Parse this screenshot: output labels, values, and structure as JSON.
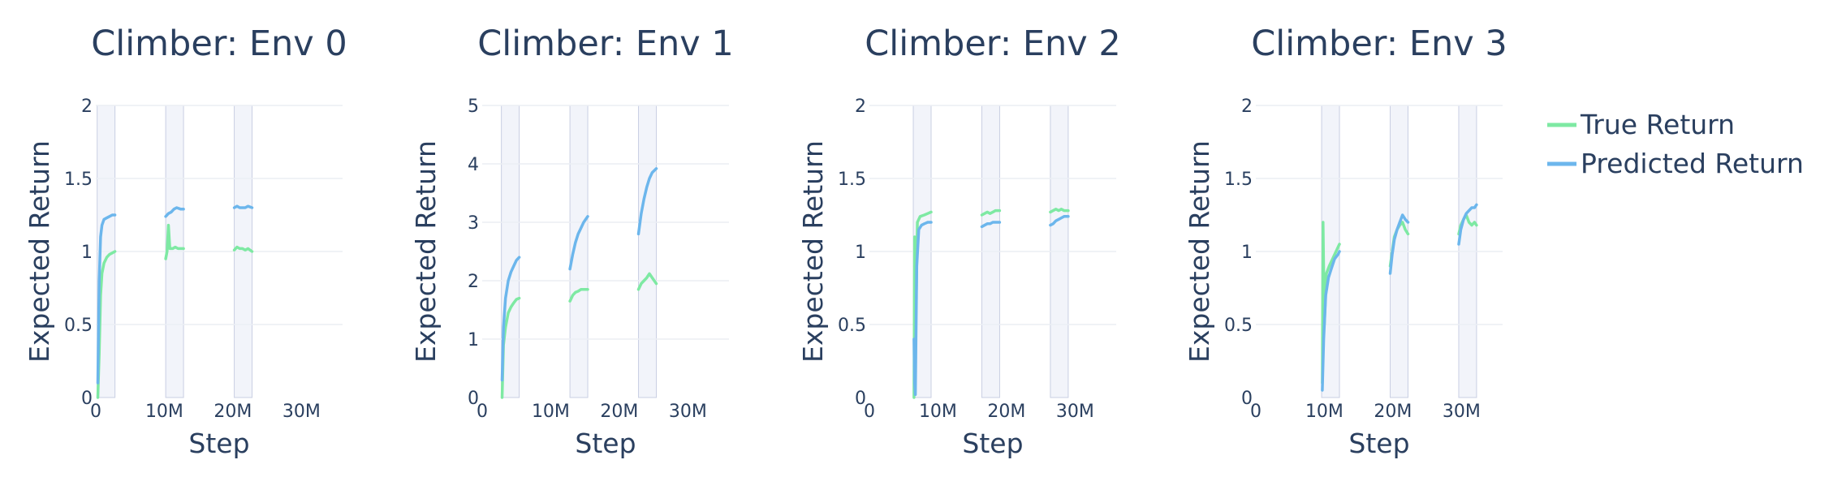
{
  "colors": {
    "true": "#7ee9a3",
    "pred": "#6cb6ec",
    "band": "#e8ebf6",
    "grid": "#ebeef4"
  },
  "legend": {
    "items": [
      {
        "label": "True Return",
        "color": "#7ee9a3"
      },
      {
        "label": "Predicted Return",
        "color": "#6cb6ec"
      }
    ],
    "placement": "top-right"
  },
  "chart_data": [
    {
      "type": "line",
      "title": "Climber: Env 0",
      "xlabel": "Step",
      "ylabel": "Expected Return",
      "xlim": [
        0,
        36
      ],
      "ylim": [
        0,
        2
      ],
      "xticks": [
        0,
        10,
        20,
        30
      ],
      "xtick_labels": [
        "0",
        "10M",
        "20M",
        "30M"
      ],
      "yticks": [
        0,
        0.5,
        1,
        1.5,
        2
      ],
      "ytick_labels": [
        "0",
        "0.5",
        "1",
        "1.5",
        "2"
      ],
      "bands": [
        [
          0.2,
          2.8
        ],
        [
          10.2,
          12.8
        ],
        [
          20.2,
          22.8
        ]
      ],
      "series": [
        {
          "name": "True Return",
          "segments": [
            [
              [
                0.3,
                0.0
              ],
              [
                0.5,
                0.3
              ],
              [
                0.7,
                0.7
              ],
              [
                0.9,
                0.85
              ],
              [
                1.2,
                0.92
              ],
              [
                1.6,
                0.96
              ],
              [
                2.0,
                0.98
              ],
              [
                2.4,
                0.99
              ],
              [
                2.8,
                1.0
              ]
            ],
            [
              [
                10.2,
                0.95
              ],
              [
                10.4,
                1.0
              ],
              [
                10.6,
                1.18
              ],
              [
                10.8,
                1.02
              ],
              [
                11.2,
                1.02
              ],
              [
                11.6,
                1.03
              ],
              [
                12.0,
                1.02
              ],
              [
                12.4,
                1.02
              ],
              [
                12.8,
                1.02
              ]
            ],
            [
              [
                20.2,
                1.01
              ],
              [
                20.6,
                1.03
              ],
              [
                21.0,
                1.02
              ],
              [
                21.4,
                1.02
              ],
              [
                21.8,
                1.01
              ],
              [
                22.2,
                1.02
              ],
              [
                22.8,
                1.0
              ]
            ]
          ]
        },
        {
          "name": "Predicted Return",
          "segments": [
            [
              [
                0.3,
                0.1
              ],
              [
                0.5,
                0.8
              ],
              [
                0.7,
                1.1
              ],
              [
                0.9,
                1.18
              ],
              [
                1.2,
                1.22
              ],
              [
                1.6,
                1.23
              ],
              [
                2.0,
                1.24
              ],
              [
                2.4,
                1.25
              ],
              [
                2.8,
                1.25
              ]
            ],
            [
              [
                10.2,
                1.24
              ],
              [
                10.6,
                1.26
              ],
              [
                11.0,
                1.27
              ],
              [
                11.4,
                1.29
              ],
              [
                11.8,
                1.3
              ],
              [
                12.4,
                1.29
              ],
              [
                12.8,
                1.29
              ]
            ],
            [
              [
                20.2,
                1.3
              ],
              [
                20.6,
                1.31
              ],
              [
                21.0,
                1.3
              ],
              [
                21.4,
                1.3
              ],
              [
                21.8,
                1.3
              ],
              [
                22.2,
                1.31
              ],
              [
                22.8,
                1.3
              ]
            ]
          ]
        }
      ]
    },
    {
      "type": "line",
      "title": "Climber: Env 1",
      "xlabel": "Step",
      "ylabel": "Expected Return",
      "xlim": [
        0,
        36
      ],
      "ylim": [
        0,
        5
      ],
      "xticks": [
        0,
        10,
        20,
        30
      ],
      "xtick_labels": [
        "0",
        "10M",
        "20M",
        "30M"
      ],
      "yticks": [
        0,
        1,
        2,
        3,
        4,
        5
      ],
      "ytick_labels": [
        "0",
        "1",
        "2",
        "3",
        "4",
        "5"
      ],
      "bands": [
        [
          2.8,
          5.4
        ],
        [
          12.8,
          15.4
        ],
        [
          22.8,
          25.4
        ]
      ],
      "series": [
        {
          "name": "True Return",
          "segments": [
            [
              [
                2.9,
                0.0
              ],
              [
                3.1,
                0.9
              ],
              [
                3.4,
                1.2
              ],
              [
                3.8,
                1.45
              ],
              [
                4.2,
                1.55
              ],
              [
                4.6,
                1.62
              ],
              [
                5.0,
                1.68
              ],
              [
                5.4,
                1.7
              ]
            ],
            [
              [
                12.8,
                1.65
              ],
              [
                13.2,
                1.75
              ],
              [
                13.6,
                1.8
              ],
              [
                14.0,
                1.82
              ],
              [
                14.4,
                1.85
              ],
              [
                14.8,
                1.85
              ],
              [
                15.4,
                1.85
              ]
            ],
            [
              [
                22.8,
                1.85
              ],
              [
                23.2,
                1.95
              ],
              [
                23.6,
                2.0
              ],
              [
                24.0,
                2.05
              ],
              [
                24.4,
                2.12
              ],
              [
                24.8,
                2.05
              ],
              [
                25.4,
                1.95
              ]
            ]
          ]
        },
        {
          "name": "Predicted Return",
          "segments": [
            [
              [
                2.9,
                0.3
              ],
              [
                3.1,
                1.2
              ],
              [
                3.4,
                1.7
              ],
              [
                3.8,
                2.0
              ],
              [
                4.2,
                2.15
              ],
              [
                4.6,
                2.25
              ],
              [
                5.0,
                2.35
              ],
              [
                5.4,
                2.4
              ]
            ],
            [
              [
                12.8,
                2.2
              ],
              [
                13.2,
                2.45
              ],
              [
                13.6,
                2.65
              ],
              [
                14.0,
                2.8
              ],
              [
                14.4,
                2.9
              ],
              [
                14.8,
                3.0
              ],
              [
                15.4,
                3.1
              ]
            ],
            [
              [
                22.8,
                2.8
              ],
              [
                23.2,
                3.15
              ],
              [
                23.6,
                3.4
              ],
              [
                24.0,
                3.6
              ],
              [
                24.4,
                3.75
              ],
              [
                24.8,
                3.85
              ],
              [
                25.4,
                3.92
              ]
            ]
          ]
        }
      ]
    },
    {
      "type": "line",
      "title": "Climber: Env 2",
      "xlabel": "Step",
      "ylabel": "Expected Return",
      "xlim": [
        0,
        36
      ],
      "ylim": [
        0,
        2
      ],
      "xticks": [
        0,
        10,
        20,
        30
      ],
      "xtick_labels": [
        "0",
        "10M",
        "20M",
        "30M"
      ],
      "yticks": [
        0,
        0.5,
        1,
        1.5,
        2
      ],
      "ytick_labels": [
        "0",
        "0.5",
        "1",
        "1.5",
        "2"
      ],
      "bands": [
        [
          6.4,
          9.0
        ],
        [
          16.4,
          19.0
        ],
        [
          26.4,
          29.0
        ]
      ],
      "series": [
        {
          "name": "True Return",
          "segments": [
            [
              [
                6.5,
                0.0
              ],
              [
                6.6,
                1.1
              ],
              [
                6.8,
                0.6
              ],
              [
                7.0,
                1.2
              ],
              [
                7.4,
                1.24
              ],
              [
                8.0,
                1.25
              ],
              [
                8.5,
                1.26
              ],
              [
                9.0,
                1.27
              ]
            ],
            [
              [
                16.4,
                1.25
              ],
              [
                16.8,
                1.26
              ],
              [
                17.2,
                1.27
              ],
              [
                17.6,
                1.26
              ],
              [
                18.0,
                1.27
              ],
              [
                18.4,
                1.28
              ],
              [
                19.0,
                1.28
              ]
            ],
            [
              [
                26.4,
                1.27
              ],
              [
                26.8,
                1.28
              ],
              [
                27.2,
                1.29
              ],
              [
                27.6,
                1.28
              ],
              [
                28.0,
                1.29
              ],
              [
                28.4,
                1.28
              ],
              [
                29.0,
                1.28
              ]
            ]
          ]
        },
        {
          "name": "Predicted Return",
          "segments": [
            [
              [
                6.5,
                0.4
              ],
              [
                6.6,
                0.1
              ],
              [
                6.7,
                0.02
              ],
              [
                6.9,
                0.9
              ],
              [
                7.2,
                1.15
              ],
              [
                7.6,
                1.18
              ],
              [
                8.0,
                1.19
              ],
              [
                8.5,
                1.2
              ],
              [
                9.0,
                1.2
              ]
            ],
            [
              [
                16.4,
                1.17
              ],
              [
                16.8,
                1.18
              ],
              [
                17.2,
                1.19
              ],
              [
                17.6,
                1.19
              ],
              [
                18.0,
                1.2
              ],
              [
                18.4,
                1.2
              ],
              [
                19.0,
                1.2
              ]
            ],
            [
              [
                26.4,
                1.18
              ],
              [
                26.8,
                1.19
              ],
              [
                27.2,
                1.21
              ],
              [
                27.6,
                1.22
              ],
              [
                28.0,
                1.23
              ],
              [
                28.4,
                1.24
              ],
              [
                29.0,
                1.24
              ]
            ]
          ]
        }
      ]
    },
    {
      "type": "line",
      "title": "Climber: Env 3",
      "xlabel": "Step",
      "ylabel": "Expected Return",
      "xlim": [
        0,
        36
      ],
      "ylim": [
        0,
        2
      ],
      "xticks": [
        0,
        10,
        20,
        30
      ],
      "xtick_labels": [
        "0",
        "10M",
        "20M",
        "30M"
      ],
      "yticks": [
        0,
        0.5,
        1,
        1.5,
        2
      ],
      "ytick_labels": [
        "0",
        "0.5",
        "1",
        "1.5",
        "2"
      ],
      "bands": [
        [
          9.6,
          12.2
        ],
        [
          19.6,
          22.2
        ],
        [
          29.6,
          32.2
        ]
      ],
      "series": [
        {
          "name": "True Return",
          "segments": [
            [
              [
                9.7,
                0.1
              ],
              [
                9.8,
                1.2
              ],
              [
                10.0,
                0.5
              ],
              [
                10.3,
                0.85
              ],
              [
                10.7,
                0.9
              ],
              [
                11.2,
                0.95
              ],
              [
                11.7,
                1.0
              ],
              [
                12.2,
                1.05
              ]
            ],
            [
              [
                19.6,
                0.9
              ],
              [
                19.9,
                1.0
              ],
              [
                20.2,
                1.1
              ],
              [
                20.6,
                1.15
              ],
              [
                21.0,
                1.18
              ],
              [
                21.4,
                1.2
              ],
              [
                21.8,
                1.15
              ],
              [
                22.2,
                1.12
              ]
            ],
            [
              [
                29.6,
                1.12
              ],
              [
                29.9,
                1.18
              ],
              [
                30.3,
                1.22
              ],
              [
                30.7,
                1.25
              ],
              [
                31.1,
                1.2
              ],
              [
                31.5,
                1.18
              ],
              [
                31.9,
                1.2
              ],
              [
                32.2,
                1.18
              ]
            ]
          ]
        },
        {
          "name": "Predicted Return",
          "segments": [
            [
              [
                9.7,
                0.05
              ],
              [
                9.9,
                0.4
              ],
              [
                10.2,
                0.7
              ],
              [
                10.6,
                0.82
              ],
              [
                11.0,
                0.88
              ],
              [
                11.5,
                0.95
              ],
              [
                12.0,
                0.98
              ],
              [
                12.2,
                1.0
              ]
            ],
            [
              [
                19.6,
                0.85
              ],
              [
                19.9,
                0.98
              ],
              [
                20.2,
                1.08
              ],
              [
                20.6,
                1.15
              ],
              [
                21.0,
                1.2
              ],
              [
                21.4,
                1.25
              ],
              [
                21.8,
                1.22
              ],
              [
                22.2,
                1.2
              ]
            ],
            [
              [
                29.6,
                1.05
              ],
              [
                29.9,
                1.15
              ],
              [
                30.3,
                1.22
              ],
              [
                30.7,
                1.26
              ],
              [
                31.1,
                1.28
              ],
              [
                31.5,
                1.3
              ],
              [
                31.9,
                1.3
              ],
              [
                32.2,
                1.32
              ]
            ]
          ]
        }
      ]
    }
  ]
}
